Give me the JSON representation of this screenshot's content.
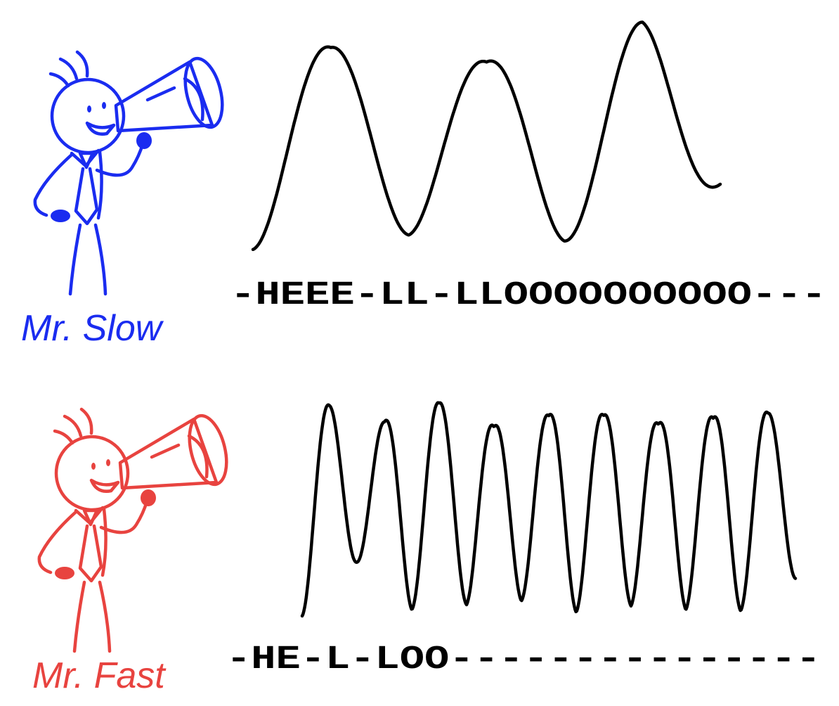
{
  "speakers": [
    {
      "name": "Mr. Slow",
      "color": "#1a2cf0",
      "speech": "-HEEE-LL-LLOOOOOOOOOO---",
      "wave_cycles": 3,
      "wave_amplitudes": [
        0.97,
        0.7,
        0.85,
        0.58,
        0.9,
        0.91,
        0.43
      ]
    },
    {
      "name": "Mr. Fast",
      "color": "#e8433f",
      "speech": "-HE-L-LOO---------------",
      "wave_cycles": 9,
      "wave_amplitudes": [
        1.0,
        0.68,
        0.57,
        0.55,
        0.95,
        0.7,
        0.91,
        0.51,
        0.88,
        0.6,
        0.97,
        0.6,
        0.92,
        0.53,
        0.95,
        0.58,
        0.96,
        0.62,
        0.7
      ]
    }
  ]
}
